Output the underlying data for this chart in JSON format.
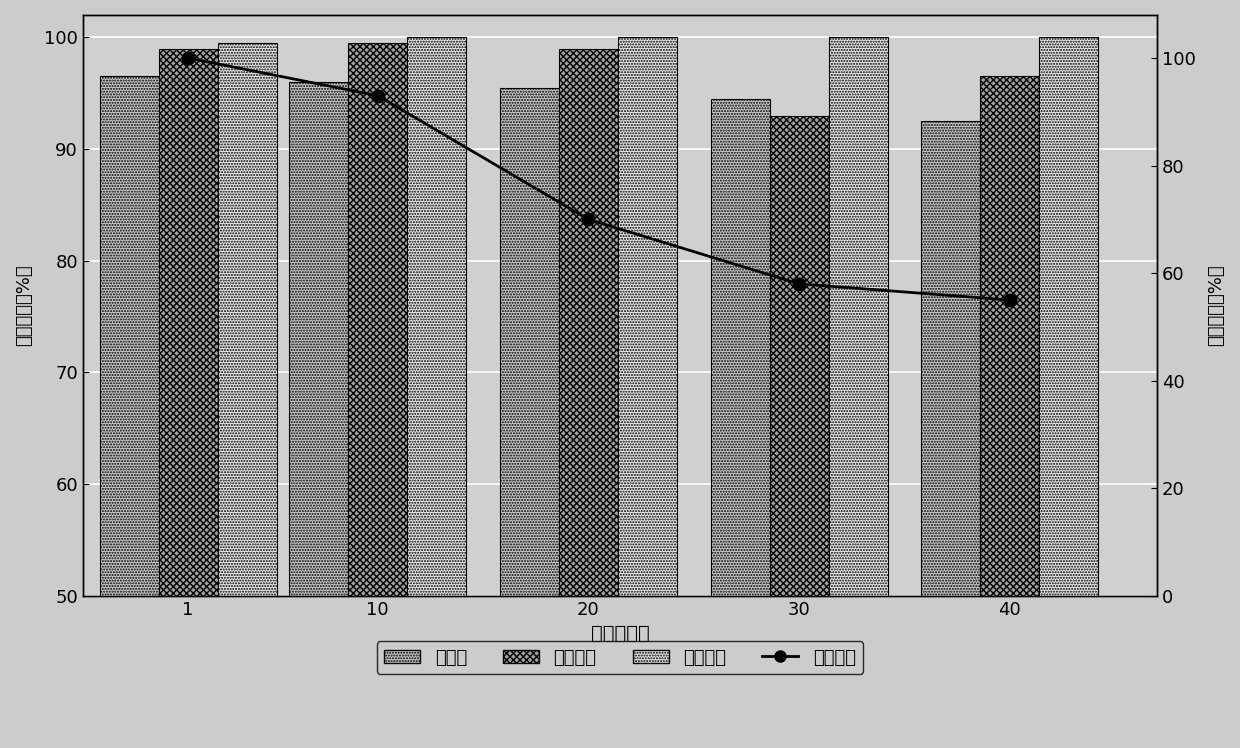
{
  "x_labels": [
    "1",
    "10",
    "20",
    "30",
    "40"
  ],
  "x_positions": [
    1,
    10,
    20,
    30,
    40
  ],
  "bar_width": 2.8,
  "huangdougan": [
    96.5,
    96.0,
    95.5,
    94.5,
    92.5
  ],
  "ranliaomugam": [
    99.0,
    99.5,
    99.0,
    93.0,
    96.5
  ],
  "huangdouhuanggan": [
    99.5,
    100.0,
    100.0,
    100.0,
    100.0
  ],
  "shengyu_activity": [
    100,
    93,
    70,
    58,
    55
  ],
  "left_ylim": [
    50,
    102
  ],
  "left_yticks": [
    50,
    60,
    70,
    80,
    90,
    100
  ],
  "right_ylim": [
    0,
    108
  ],
  "right_yticks": [
    0,
    20,
    40,
    60,
    80,
    100
  ],
  "xlabel": "反应循环数",
  "ylabel_left": "水解效率（%）",
  "ylabel_right": "剩余酶活（%）",
  "legend_labels": [
    "黄豆苷",
    "染料木苷",
    "黄豆黄苷",
    "剩余酶活"
  ],
  "bar_color_1": "#c8c8c8",
  "bar_color_2": "#a0a0a0",
  "bar_color_3": "#e8e8e8",
  "line_color": "#000000",
  "background_color": "#cccccc",
  "plot_bg_color": "#d0d0d0",
  "grid_color": "#ffffff"
}
